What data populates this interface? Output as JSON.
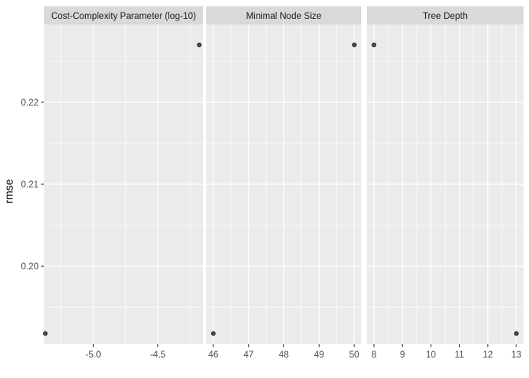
{
  "chart_data": {
    "type": "scatter",
    "ylabel": "rmse",
    "ylim": [
      0.1905,
      0.2295
    ],
    "y_ticks": [
      0.2,
      0.21,
      0.22
    ],
    "y_tick_labels": [
      "0.20",
      "0.21",
      "0.22"
    ],
    "grid": true,
    "facets": [
      {
        "title": "Cost-Complexity Parameter (log-10)",
        "xlim": [
          -5.38,
          -4.15
        ],
        "x_ticks": [
          -5.0,
          -4.5
        ],
        "x_tick_labels": [
          "-5.0",
          "-4.5"
        ],
        "x": [
          -5.37,
          -4.18
        ],
        "y": [
          0.1918,
          0.227
        ]
      },
      {
        "title": "Minimal Node Size",
        "xlim": [
          45.8,
          50.2
        ],
        "x_ticks": [
          46,
          47,
          48,
          49,
          50
        ],
        "x_tick_labels": [
          "46",
          "47",
          "48",
          "49",
          "50"
        ],
        "x": [
          46,
          50
        ],
        "y": [
          0.1918,
          0.227
        ]
      },
      {
        "title": "Tree Depth",
        "xlim": [
          7.75,
          13.25
        ],
        "x_ticks": [
          8,
          9,
          10,
          11,
          12,
          13
        ],
        "x_tick_labels": [
          "8",
          "9",
          "10",
          "11",
          "12",
          "13"
        ],
        "x": [
          8,
          13
        ],
        "y": [
          0.227,
          0.1918
        ]
      }
    ]
  }
}
